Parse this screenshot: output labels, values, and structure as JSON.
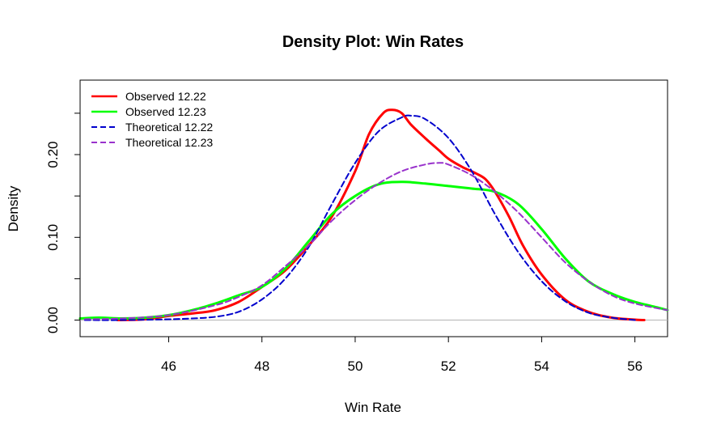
{
  "chart_data": {
    "type": "line",
    "title": "Density Plot: Win Rates",
    "xlabel": "Win Rate",
    "ylabel": "Density",
    "xlim": [
      44.1,
      56.7
    ],
    "ylim": [
      -0.02,
      0.29
    ],
    "x_ticks": [
      46,
      48,
      50,
      52,
      54,
      56
    ],
    "x_tick_labels": [
      "46",
      "48",
      "50",
      "52",
      "54",
      "56"
    ],
    "y_ticks": [
      0.0,
      0.05,
      0.1,
      0.15,
      0.2,
      0.25
    ],
    "y_tick_labels": [
      "0.00",
      "",
      "0.10",
      "",
      "0.20",
      ""
    ],
    "baseline": 0,
    "legend_position": "top-left",
    "series": [
      {
        "name": "Observed 12.22",
        "color": "#ff0000",
        "style": "solid",
        "x": [
          44.9,
          45.5,
          46.0,
          46.5,
          47.0,
          47.5,
          48.0,
          48.5,
          49.0,
          49.5,
          50.0,
          50.3,
          50.6,
          50.8,
          51.0,
          51.2,
          51.5,
          51.8,
          52.0,
          52.3,
          52.6,
          52.8,
          53.0,
          53.3,
          53.6,
          54.0,
          54.5,
          55.0,
          55.5,
          56.0,
          56.2
        ],
        "values": [
          0.0,
          0.001,
          0.005,
          0.008,
          0.012,
          0.022,
          0.04,
          0.06,
          0.09,
          0.125,
          0.18,
          0.225,
          0.25,
          0.254,
          0.25,
          0.236,
          0.22,
          0.205,
          0.195,
          0.185,
          0.177,
          0.17,
          0.155,
          0.125,
          0.09,
          0.055,
          0.025,
          0.01,
          0.003,
          0.0005,
          0.0
        ]
      },
      {
        "name": "Observed 12.23",
        "color": "#00ff00",
        "style": "solid",
        "x": [
          44.1,
          44.5,
          45.0,
          45.5,
          46.0,
          46.5,
          47.0,
          47.5,
          48.0,
          48.5,
          49.0,
          49.5,
          50.0,
          50.5,
          51.0,
          51.5,
          52.0,
          52.5,
          53.0,
          53.5,
          54.0,
          54.5,
          55.0,
          55.5,
          56.0,
          56.5,
          56.7
        ],
        "values": [
          0.002,
          0.003,
          0.002,
          0.003,
          0.006,
          0.012,
          0.02,
          0.03,
          0.04,
          0.062,
          0.095,
          0.128,
          0.15,
          0.164,
          0.167,
          0.165,
          0.162,
          0.159,
          0.155,
          0.14,
          0.11,
          0.075,
          0.047,
          0.032,
          0.022,
          0.015,
          0.012
        ]
      },
      {
        "name": "Theoretical 12.22",
        "color": "#0000cd",
        "style": "dashed",
        "x": [
          44.2,
          45.0,
          46.0,
          46.5,
          47.0,
          47.5,
          48.0,
          48.5,
          49.0,
          49.5,
          50.0,
          50.5,
          51.0,
          51.2,
          51.5,
          52.0,
          52.5,
          53.0,
          53.5,
          54.0,
          54.5,
          55.0,
          55.5,
          56.0
        ],
        "values": [
          0.0,
          0.0,
          0.001,
          0.002,
          0.004,
          0.01,
          0.025,
          0.05,
          0.088,
          0.14,
          0.19,
          0.228,
          0.245,
          0.247,
          0.243,
          0.22,
          0.18,
          0.128,
          0.082,
          0.047,
          0.023,
          0.009,
          0.003,
          0.0
        ]
      },
      {
        "name": "Theoretical 12.23",
        "color": "#9932cc",
        "style": "dashed",
        "x": [
          44.2,
          45.0,
          46.0,
          47.0,
          47.5,
          48.0,
          48.5,
          49.0,
          49.5,
          50.0,
          50.5,
          51.0,
          51.5,
          51.8,
          52.0,
          52.5,
          53.0,
          53.5,
          54.0,
          54.5,
          55.0,
          55.5,
          56.0,
          56.7
        ],
        "values": [
          0.001,
          0.002,
          0.006,
          0.018,
          0.028,
          0.042,
          0.065,
          0.09,
          0.12,
          0.145,
          0.165,
          0.18,
          0.188,
          0.19,
          0.188,
          0.175,
          0.155,
          0.13,
          0.1,
          0.07,
          0.047,
          0.03,
          0.02,
          0.012
        ]
      }
    ]
  }
}
